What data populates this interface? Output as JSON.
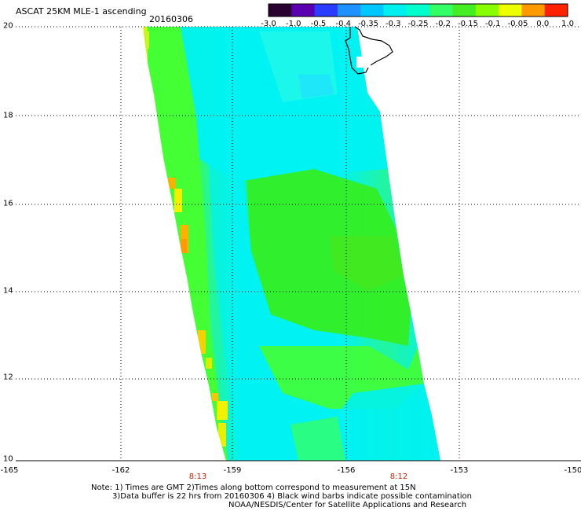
{
  "header": {
    "title": "ASCAT 25KM MLE-1 ascending",
    "date": "20160306"
  },
  "colorbar": {
    "labels": [
      "-3.0",
      "-1.0",
      "-0.5",
      "-0.4",
      "-0.35",
      "-0.3",
      "-0.25",
      "-0.2",
      "-0.15",
      "-0.1",
      "-0.05",
      "0.0",
      "1.0"
    ],
    "colors": [
      "#2a0030",
      "#5a00b0",
      "#2a3cff",
      "#1e90ff",
      "#00c8ff",
      "#00f0f0",
      "#00ffcc",
      "#33ff66",
      "#44ee22",
      "#88ff00",
      "#eeff00",
      "#ff9900",
      "#ff2200"
    ]
  },
  "axes": {
    "lat_labels": [
      "20",
      "18",
      "16",
      "14",
      "12",
      "10"
    ],
    "lon_labels": [
      "-165",
      "-162",
      "-159",
      "-156",
      "-153",
      "-150"
    ]
  },
  "times": {
    "left": "8:13",
    "right": "8:12"
  },
  "notes": {
    "line1": "Note: 1) Times are GMT 2)Times along bottom correspond to measurement at 15N",
    "line2": "3)Data buffer is 22 hrs from 20160306 4) Black wind barbs indicate possible contamination",
    "credit": "NOAA/NESDIS/Center for Satellite Applications and Research"
  },
  "map": {
    "lat_range": [
      10,
      20
    ],
    "lon_range": [
      -165,
      -150
    ],
    "colors": {
      "cyan": "#00f2f2",
      "light_cyan": "#22f8e8",
      "aqua_green": "#22f5a0",
      "green": "#33ee22",
      "bright_green": "#44ff33",
      "yellow_green": "#c8f51e",
      "yellow": "#f2f200",
      "orange": "#ff9a00",
      "coastline": "#000000",
      "grid": "#000000"
    }
  }
}
